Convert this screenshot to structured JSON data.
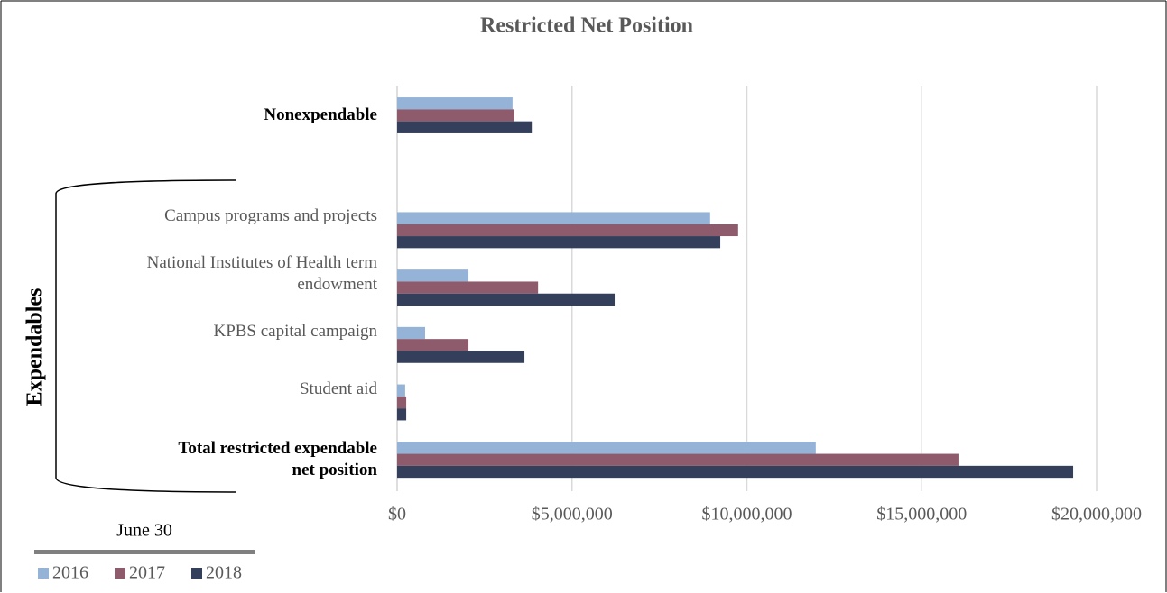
{
  "chart_data": {
    "type": "bar",
    "orientation": "horizontal",
    "title": "Restricted Net Position",
    "group_label": "Expendables",
    "legend_title": "June 30",
    "categories": [
      "Nonexpendable",
      null,
      "Campus programs and projects",
      "National Institutes of Health term endowment",
      "KPBS capital campaign",
      "Student aid",
      "Total restricted expendable net position"
    ],
    "series": [
      {
        "name": "2016",
        "color": "#95b3d7",
        "values": [
          3300000,
          null,
          8950000,
          2040000,
          800000,
          230000,
          11970000
        ]
      },
      {
        "name": "2017",
        "color": "#8e5b6c",
        "values": [
          3350000,
          null,
          9750000,
          4030000,
          2040000,
          260000,
          16050000
        ]
      },
      {
        "name": "2018",
        "color": "#333f5b",
        "values": [
          3850000,
          null,
          9240000,
          6220000,
          3640000,
          260000,
          19330000
        ]
      }
    ],
    "xlim": [
      0,
      20000000
    ],
    "xticks": [
      {
        "value": 0,
        "label": "$0"
      },
      {
        "value": 5000000,
        "label": "$5,000,000"
      },
      {
        "value": 10000000,
        "label": "$10,000,000"
      },
      {
        "value": 15000000,
        "label": "$15,000,000"
      },
      {
        "value": 20000000,
        "label": "$20,000,000"
      }
    ],
    "grid": true,
    "legend": "bottom-left"
  }
}
